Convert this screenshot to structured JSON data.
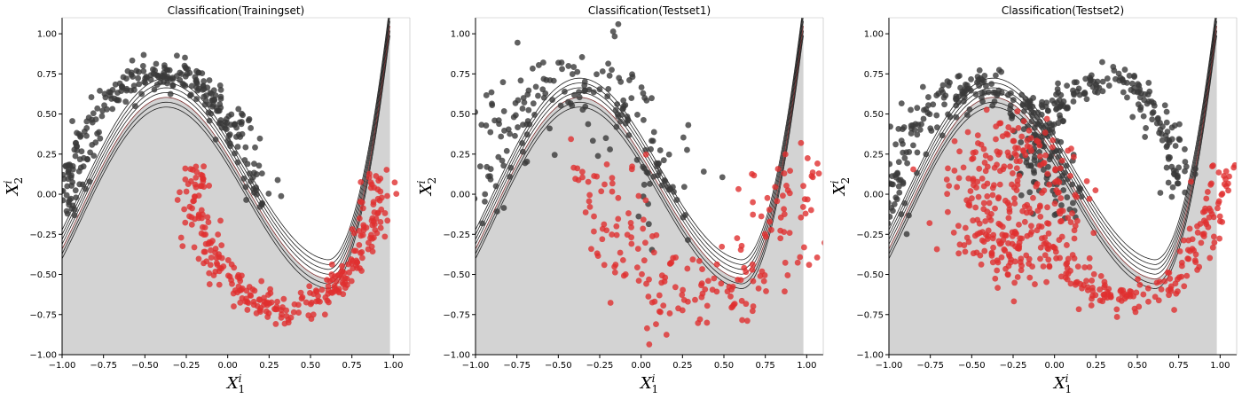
{
  "chart_data": [
    {
      "type": "scatter",
      "title": "Classification(Trainingset)",
      "xlim": [
        -1.0,
        1.1
      ],
      "ylim": [
        -1.0,
        1.1
      ],
      "xticks": [
        "−1.00",
        "−0.75",
        "−0.50",
        "−0.25",
        "0.00",
        "0.25",
        "0.50",
        "0.75",
        "1.00"
      ],
      "yticks": [
        "−1.00",
        "−0.75",
        "−0.50",
        "−0.25",
        "0.00",
        "0.25",
        "0.50",
        "0.75",
        "1.00"
      ],
      "xlabel": {
        "main": "X",
        "sup": "i",
        "sub": "1"
      },
      "ylabel": {
        "main": "X",
        "sup": "i",
        "sub": "2"
      },
      "grid": false,
      "background_region": {
        "color": "#d3d3d3",
        "description_class": "red"
      },
      "series": [
        {
          "color": "#3a3a3a",
          "generator": {
            "cx": -0.4,
            "cy": 0.0,
            "r": 0.9,
            "from": 0.0,
            "to": 180.0,
            "offset_y": -0.1,
            "noise": 0.05,
            "n": 300,
            "seed": 11
          }
        },
        {
          "color": "#e03030",
          "generator": {
            "cx": 0.35,
            "cy": 0.15,
            "r": 0.9,
            "from": 180.0,
            "to": 360.0,
            "offset_y": 0.0,
            "noise": 0.05,
            "n": 300,
            "seed": 12
          }
        }
      ]
    },
    {
      "type": "scatter",
      "title": "Classification(Testset1)",
      "xlim": [
        -1.0,
        1.1
      ],
      "ylim": [
        -1.0,
        1.1
      ],
      "xticks": [
        "−1.00",
        "−0.75",
        "−0.50",
        "−0.25",
        "0.00",
        "0.25",
        "0.50",
        "0.75",
        "1.00"
      ],
      "yticks": [
        "−1.00",
        "−0.75",
        "−0.50",
        "−0.25",
        "0.00",
        "0.25",
        "0.50",
        "0.75",
        "1.00"
      ],
      "xlabel": {
        "main": "X",
        "sup": "i",
        "sub": "1"
      },
      "ylabel": {
        "main": "X",
        "sup": "i",
        "sub": "2"
      },
      "grid": false,
      "background_region": {
        "color": "#d3d3d3",
        "description_class": "red"
      },
      "series": [
        {
          "color": "#3a3a3a",
          "generator": {
            "cx": -0.4,
            "cy": 0.0,
            "r": 0.9,
            "from": 0.0,
            "to": 180.0,
            "offset_y": -0.15,
            "noise": 0.12,
            "n": 200,
            "seed": 21
          }
        },
        {
          "color": "#e03030",
          "generator": {
            "cx": 0.35,
            "cy": 0.15,
            "r": 0.9,
            "from": 180.0,
            "to": 360.0,
            "offset_y": 0.05,
            "noise": 0.12,
            "n": 200,
            "seed": 22
          }
        }
      ]
    },
    {
      "type": "scatter",
      "title": "Classification(Testset2)",
      "xlim": [
        -1.0,
        1.1
      ],
      "ylim": [
        -1.0,
        1.1
      ],
      "xticks": [
        "−1.00",
        "−0.75",
        "−0.50",
        "−0.25",
        "0.00",
        "0.25",
        "0.50",
        "0.75",
        "1.00"
      ],
      "yticks": [
        "−1.00",
        "−0.75",
        "−0.50",
        "−0.25",
        "0.00",
        "0.25",
        "0.50",
        "0.75",
        "1.00"
      ],
      "xlabel": {
        "main": "X",
        "sup": "i",
        "sub": "1"
      },
      "ylabel": {
        "main": "X",
        "sup": "i",
        "sub": "2"
      },
      "grid": false,
      "background_region": {
        "color": "#d3d3d3",
        "description_class": "red"
      },
      "series": [
        {
          "color": "#3a3a3a",
          "generator": {
            "cx": -0.45,
            "cy": 0.0,
            "r": 0.85,
            "from": 0.0,
            "to": 180.0,
            "offset_y": -0.15,
            "noise": 0.06,
            "n": 250,
            "seed": 31
          }
        },
        {
          "color": "#3a3a3a",
          "generator": {
            "cx": 0.3,
            "cy": 0.05,
            "r": 0.7,
            "from": 0.0,
            "to": 180.0,
            "offset_y": 0.0,
            "noise": 0.05,
            "n": 200,
            "seed": 32
          }
        },
        {
          "color": "#e03030",
          "generator": {
            "cx": -0.25,
            "cy": -0.05,
            "r": 0.35,
            "from": 0.0,
            "to": 360.0,
            "offset_y": 0.0,
            "noise": 0.12,
            "n": 300,
            "seed": 33
          }
        },
        {
          "color": "#e03030",
          "generator": {
            "cx": 0.45,
            "cy": 0.2,
            "r": 0.9,
            "from": 215.0,
            "to": 360.0,
            "offset_y": 0.0,
            "noise": 0.05,
            "n": 180,
            "seed": 34
          }
        }
      ]
    }
  ]
}
